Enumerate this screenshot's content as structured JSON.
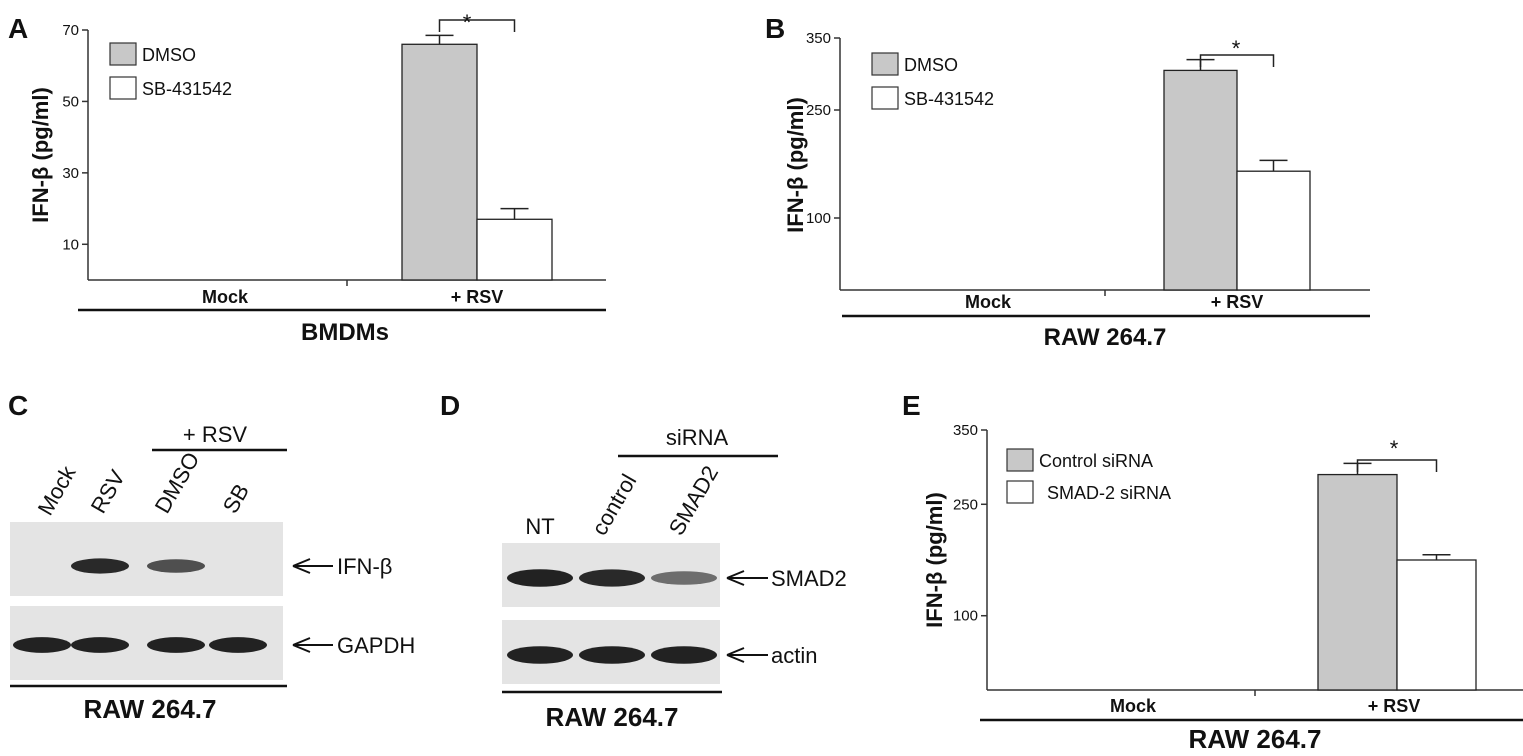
{
  "colors": {
    "dmso": "#c8c8c8",
    "sb": "#ffffff",
    "gel_bg": "#e4e4e4",
    "band": "#1a1a1a"
  },
  "panels": {
    "A": {
      "letter": "A",
      "ylabel": "IFN-β (pg/ml)",
      "cell_line": "BMDMs",
      "significance": "*",
      "chart_data": {
        "type": "bar",
        "categories": [
          "Mock",
          "+ RSV"
        ],
        "series": [
          {
            "name": "DMSO",
            "values": [
              0,
              66
            ],
            "error": [
              0,
              2.5
            ]
          },
          {
            "name": "SB-431542",
            "values": [
              0,
              17
            ],
            "error": [
              0,
              3
            ]
          }
        ],
        "ylim": [
          0,
          70
        ],
        "yticks": [
          10,
          30,
          50,
          70
        ]
      }
    },
    "B": {
      "letter": "B",
      "ylabel": "IFN-β (pg/ml)",
      "cell_line": "RAW 264.7",
      "significance": "*",
      "chart_data": {
        "type": "bar",
        "categories": [
          "Mock",
          "+ RSV"
        ],
        "series": [
          {
            "name": "DMSO",
            "values": [
              0,
              305
            ],
            "error": [
              0,
              15
            ]
          },
          {
            "name": "SB-431542",
            "values": [
              0,
              165
            ],
            "error": [
              0,
              15
            ]
          }
        ],
        "ylim": [
          0,
          350
        ],
        "yticks": [
          100,
          250,
          350
        ]
      }
    },
    "C": {
      "letter": "C",
      "group_label": "+ RSV",
      "lanes": [
        "Mock",
        "RSV",
        "DMSO",
        "SB"
      ],
      "rows": [
        {
          "label": "IFN-β",
          "intensity": [
            0,
            0.9,
            0.65,
            0
          ]
        },
        {
          "label": "GAPDH",
          "intensity": [
            0.95,
            0.95,
            0.95,
            0.95
          ]
        }
      ],
      "cell_line": "RAW 264.7"
    },
    "D": {
      "letter": "D",
      "group_label": "siRNA",
      "lanes": [
        "NT",
        "control",
        "SMAD2"
      ],
      "rows": [
        {
          "label": "SMAD2",
          "intensity": [
            0.95,
            0.9,
            0.45
          ]
        },
        {
          "label": "actin",
          "intensity": [
            0.95,
            0.95,
            0.95
          ]
        }
      ],
      "cell_line": "RAW 264.7"
    },
    "E": {
      "letter": "E",
      "ylabel": "IFN-β (pg/ml)",
      "cell_line": "RAW 264.7",
      "significance": "*",
      "chart_data": {
        "type": "bar",
        "categories": [
          "Mock",
          "+ RSV"
        ],
        "series": [
          {
            "name": "Control siRNA",
            "values": [
              0,
              290
            ],
            "error": [
              0,
              15
            ]
          },
          {
            "name": "SMAD-2 siRNA",
            "values": [
              0,
              175
            ],
            "error": [
              0,
              7
            ]
          }
        ],
        "ylim": [
          0,
          350
        ],
        "yticks": [
          100,
          250,
          350
        ]
      }
    }
  }
}
